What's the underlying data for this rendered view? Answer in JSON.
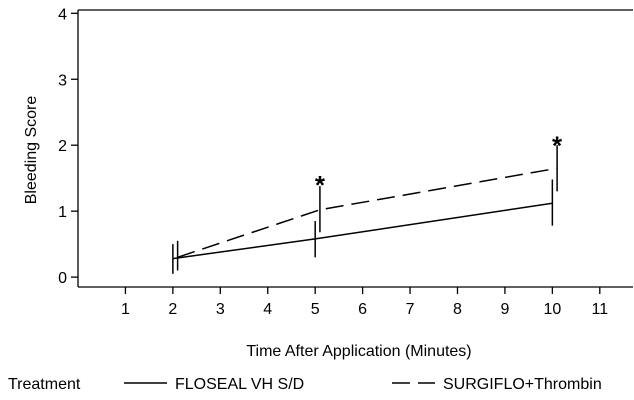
{
  "chart_data": {
    "type": "line",
    "xlabel": "Time After Application (Minutes)",
    "ylabel": "Bleeding Score",
    "xlim": [
      0,
      11.7
    ],
    "ylim": [
      -0.15,
      4.05
    ],
    "x_ticks": [
      1,
      2,
      3,
      4,
      5,
      6,
      7,
      8,
      9,
      10,
      11
    ],
    "y_ticks": [
      0,
      1,
      2,
      3,
      4
    ],
    "grid": false,
    "legend_title": "Treatment",
    "legend_position": "bottom",
    "series": [
      {
        "name": "FLOSEAL VH S/D",
        "line_style": "solid",
        "x": [
          2,
          5,
          10
        ],
        "y": [
          0.28,
          0.58,
          1.12
        ],
        "err_low": [
          0.05,
          0.3,
          0.78
        ],
        "err_high": [
          0.5,
          0.85,
          1.48
        ]
      },
      {
        "name": "SURGIFLO+Thrombin",
        "line_style": "dashed",
        "x": [
          2.1,
          5.1,
          10.1
        ],
        "y": [
          0.3,
          1.02,
          1.65
        ],
        "err_low": [
          0.1,
          0.68,
          1.3
        ],
        "err_high": [
          0.55,
          1.38,
          2.0
        ]
      }
    ],
    "annotations": [
      {
        "text": "*",
        "x": 5.1,
        "y": 1.5
      },
      {
        "text": "*",
        "x": 10.1,
        "y": 2.1
      }
    ]
  }
}
